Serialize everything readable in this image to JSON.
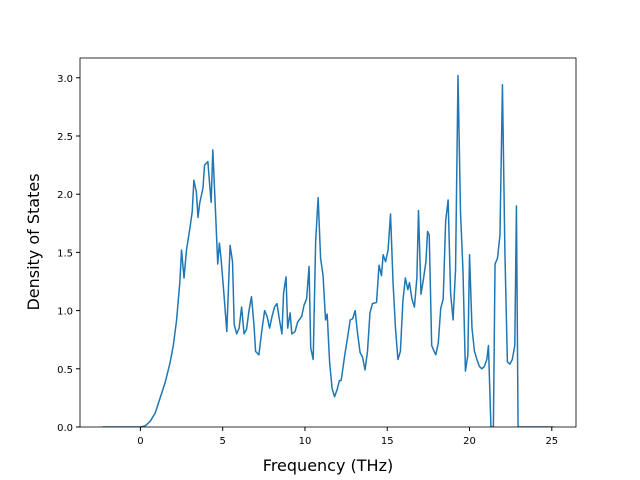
{
  "chart_data": {
    "type": "line",
    "xlabel": "Frequency (THz)",
    "ylabel": "Density of States",
    "xlim": [
      -3.67,
      26.47
    ],
    "ylim": [
      0,
      3.17
    ],
    "xticks": [
      0,
      5,
      10,
      15,
      20,
      25
    ],
    "yticks": [
      {
        "value": 0,
        "label": "0.0"
      },
      {
        "value": 0.5,
        "label": "0.5"
      },
      {
        "value": 1.0,
        "label": "1.0"
      },
      {
        "value": 1.5,
        "label": "1.5"
      },
      {
        "value": 2.0,
        "label": "2.0"
      },
      {
        "value": 2.5,
        "label": "2.5"
      },
      {
        "value": 3.0,
        "label": "3.0"
      }
    ],
    "grid": false,
    "series": [
      {
        "color": "#1f77b4",
        "x": [
          -2.3,
          0,
          0.3,
          0.6,
          0.9,
          1.2,
          1.5,
          1.8,
          2.0,
          2.2,
          2.4,
          2.5,
          2.65,
          2.8,
          3.0,
          3.15,
          3.25,
          3.4,
          3.5,
          3.6,
          3.8,
          3.9,
          4.1,
          4.2,
          4.3,
          4.4,
          4.55,
          4.7,
          4.8,
          4.9,
          5.1,
          5.25,
          5.45,
          5.6,
          5.7,
          5.85,
          6.0,
          6.15,
          6.3,
          6.45,
          6.6,
          6.75,
          6.9,
          7.0,
          7.2,
          7.4,
          7.55,
          7.7,
          7.85,
          8.0,
          8.15,
          8.3,
          8.45,
          8.6,
          8.7,
          8.85,
          8.95,
          9.1,
          9.2,
          9.4,
          9.55,
          9.8,
          9.95,
          10.1,
          10.25,
          10.35,
          10.5,
          10.65,
          10.8,
          10.95,
          11.1,
          11.25,
          11.35,
          11.5,
          11.65,
          11.8,
          11.95,
          12.1,
          12.2,
          12.4,
          12.6,
          12.75,
          12.9,
          13.05,
          13.2,
          13.35,
          13.5,
          13.65,
          13.8,
          13.95,
          14.1,
          14.35,
          14.5,
          14.65,
          14.75,
          14.9,
          15.05,
          15.2,
          15.35,
          15.5,
          15.65,
          15.8,
          15.95,
          16.1,
          16.25,
          16.35,
          16.5,
          16.65,
          16.8,
          16.9,
          17.05,
          17.2,
          17.35,
          17.45,
          17.55,
          17.7,
          17.85,
          17.95,
          18.1,
          18.25,
          18.4,
          18.55,
          18.7,
          18.85,
          19.0,
          19.15,
          19.3,
          19.45,
          19.6,
          19.75,
          19.9,
          20.0,
          20.15,
          20.3,
          20.45,
          20.6,
          20.75,
          20.9,
          21.05,
          21.15,
          21.3,
          21.45,
          21.55,
          21.7,
          21.85,
          22.0,
          22.15,
          22.3,
          22.45,
          22.6,
          22.75,
          22.85,
          22.95,
          25.1
        ],
        "values": [
          0,
          0,
          0.01,
          0.05,
          0.12,
          0.25,
          0.38,
          0.55,
          0.7,
          0.92,
          1.25,
          1.52,
          1.28,
          1.52,
          1.7,
          1.85,
          2.12,
          2.02,
          1.8,
          1.92,
          2.05,
          2.25,
          2.28,
          2.1,
          1.93,
          2.38,
          1.9,
          1.4,
          1.58,
          1.45,
          1.1,
          0.82,
          1.56,
          1.42,
          0.88,
          0.8,
          0.85,
          1.03,
          0.8,
          0.84,
          1.0,
          1.12,
          0.88,
          0.65,
          0.62,
          0.85,
          1.0,
          0.95,
          0.85,
          0.95,
          1.03,
          1.06,
          0.92,
          0.8,
          1.15,
          1.29,
          0.85,
          0.98,
          0.8,
          0.82,
          0.9,
          0.95,
          1.05,
          1.1,
          1.38,
          0.68,
          0.58,
          1.6,
          1.97,
          1.45,
          1.3,
          0.92,
          0.97,
          0.55,
          0.33,
          0.26,
          0.32,
          0.4,
          0.4,
          0.6,
          0.78,
          0.92,
          0.93,
          1.0,
          0.8,
          0.64,
          0.6,
          0.49,
          0.65,
          0.98,
          1.06,
          1.07,
          1.39,
          1.3,
          1.48,
          1.42,
          1.52,
          1.83,
          1.25,
          0.85,
          0.58,
          0.65,
          1.08,
          1.28,
          1.18,
          1.24,
          1.1,
          1.03,
          1.28,
          1.86,
          1.14,
          1.27,
          1.42,
          1.68,
          1.65,
          0.7,
          0.65,
          0.62,
          0.72,
          1.02,
          1.1,
          1.77,
          1.95,
          1.15,
          0.92,
          1.35,
          3.02,
          1.85,
          1.35,
          0.48,
          0.62,
          1.48,
          0.85,
          0.65,
          0.58,
          0.52,
          0.5,
          0.52,
          0.58,
          0.7,
          0,
          0,
          1.4,
          1.45,
          1.65,
          2.94,
          1.5,
          0.56,
          0.54,
          0.58,
          0.7,
          1.9,
          0,
          0
        ]
      }
    ]
  }
}
